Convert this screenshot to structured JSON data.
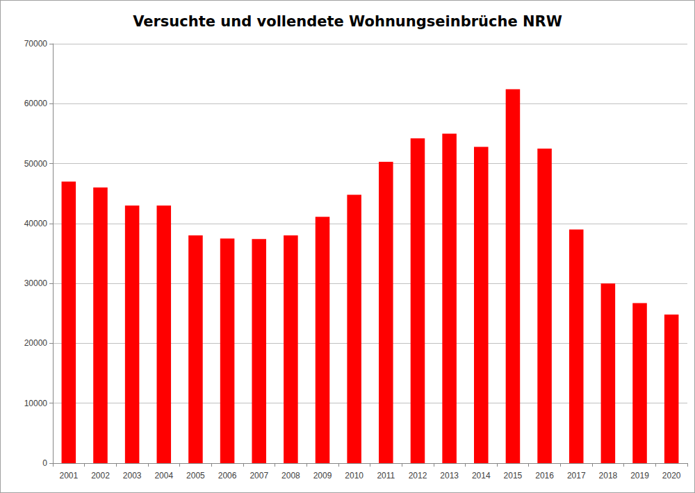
{
  "chart_data": {
    "type": "bar",
    "title": "Versuchte und vollendete Wohnungseinbrüche NRW",
    "categories": [
      "2001",
      "2002",
      "2003",
      "2004",
      "2005",
      "2006",
      "2007",
      "2008",
      "2009",
      "2010",
      "2011",
      "2012",
      "2013",
      "2014",
      "2015",
      "2016",
      "2017",
      "2018",
      "2019",
      "2020"
    ],
    "values": [
      47000,
      46000,
      43000,
      43000,
      38000,
      37500,
      37400,
      38000,
      41100,
      44800,
      50300,
      54200,
      55000,
      52800,
      62400,
      52500,
      39000,
      30000,
      26700,
      24800
    ],
    "color": "#ff0000",
    "ylim": [
      0,
      70000
    ],
    "yticks": [
      0,
      10000,
      20000,
      30000,
      40000,
      50000,
      60000,
      70000
    ],
    "grid": true
  }
}
